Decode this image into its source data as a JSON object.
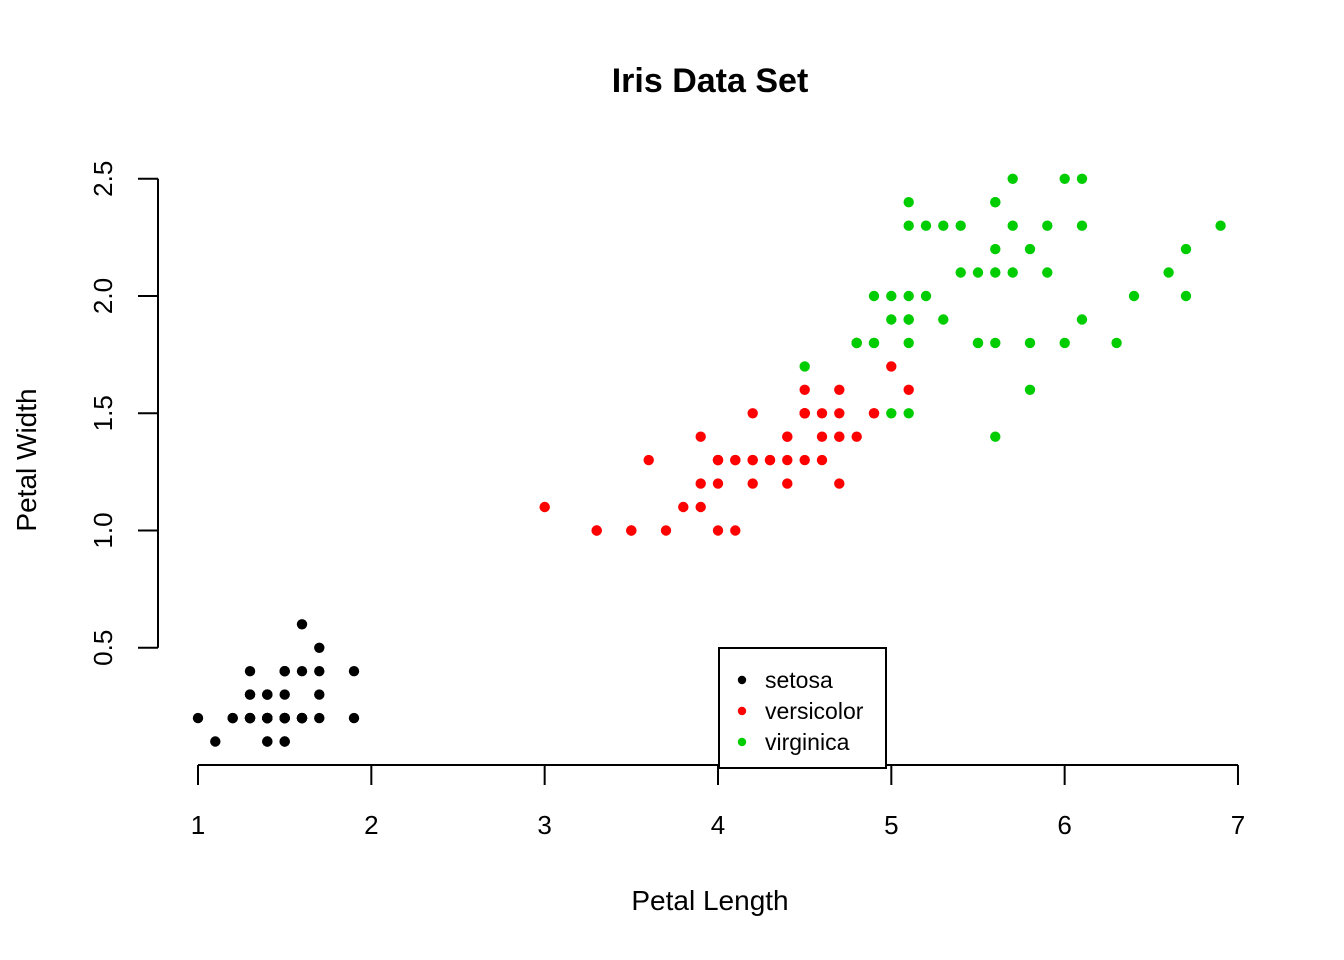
{
  "chart_data": {
    "type": "scatter",
    "title": "Iris Data Set",
    "xlabel": "Petal Length",
    "ylabel": "Petal Width",
    "xlim": [
      1,
      7
    ],
    "ylim": [
      0.1,
      2.5
    ],
    "x_ticks": [
      1,
      2,
      3,
      4,
      5,
      6,
      7
    ],
    "y_ticks": [
      0.5,
      1.0,
      1.5,
      2.0,
      2.5
    ],
    "x_tick_labels": [
      "1",
      "2",
      "3",
      "4",
      "5",
      "6",
      "7"
    ],
    "y_tick_labels": [
      "0.5",
      "1.0",
      "1.5",
      "2.0",
      "2.5"
    ],
    "grid": false,
    "legend_position": "bottom-center",
    "series": [
      {
        "name": "setosa",
        "color": "#000000",
        "points": [
          [
            1.4,
            0.2
          ],
          [
            1.4,
            0.2
          ],
          [
            1.3,
            0.2
          ],
          [
            1.5,
            0.2
          ],
          [
            1.4,
            0.2
          ],
          [
            1.7,
            0.4
          ],
          [
            1.4,
            0.3
          ],
          [
            1.5,
            0.2
          ],
          [
            1.4,
            0.2
          ],
          [
            1.5,
            0.1
          ],
          [
            1.5,
            0.2
          ],
          [
            1.6,
            0.2
          ],
          [
            1.4,
            0.1
          ],
          [
            1.1,
            0.1
          ],
          [
            1.2,
            0.2
          ],
          [
            1.5,
            0.4
          ],
          [
            1.3,
            0.4
          ],
          [
            1.4,
            0.3
          ],
          [
            1.7,
            0.3
          ],
          [
            1.5,
            0.3
          ],
          [
            1.7,
            0.2
          ],
          [
            1.5,
            0.4
          ],
          [
            1.0,
            0.2
          ],
          [
            1.7,
            0.5
          ],
          [
            1.9,
            0.2
          ],
          [
            1.6,
            0.2
          ],
          [
            1.6,
            0.4
          ],
          [
            1.5,
            0.2
          ],
          [
            1.4,
            0.2
          ],
          [
            1.6,
            0.2
          ],
          [
            1.6,
            0.2
          ],
          [
            1.5,
            0.4
          ],
          [
            1.5,
            0.1
          ],
          [
            1.4,
            0.2
          ],
          [
            1.5,
            0.2
          ],
          [
            1.2,
            0.2
          ],
          [
            1.3,
            0.2
          ],
          [
            1.4,
            0.1
          ],
          [
            1.3,
            0.2
          ],
          [
            1.5,
            0.2
          ],
          [
            1.3,
            0.3
          ],
          [
            1.3,
            0.3
          ],
          [
            1.3,
            0.2
          ],
          [
            1.6,
            0.6
          ],
          [
            1.9,
            0.4
          ],
          [
            1.4,
            0.3
          ],
          [
            1.6,
            0.2
          ],
          [
            1.4,
            0.2
          ],
          [
            1.5,
            0.2
          ],
          [
            1.4,
            0.2
          ]
        ]
      },
      {
        "name": "versicolor",
        "color": "#ff0000",
        "points": [
          [
            4.7,
            1.4
          ],
          [
            4.5,
            1.5
          ],
          [
            4.9,
            1.5
          ],
          [
            4.0,
            1.3
          ],
          [
            4.6,
            1.5
          ],
          [
            4.5,
            1.3
          ],
          [
            4.7,
            1.6
          ],
          [
            3.3,
            1.0
          ],
          [
            4.6,
            1.3
          ],
          [
            3.9,
            1.4
          ],
          [
            3.5,
            1.0
          ],
          [
            4.2,
            1.5
          ],
          [
            4.0,
            1.0
          ],
          [
            4.7,
            1.4
          ],
          [
            3.6,
            1.3
          ],
          [
            4.4,
            1.4
          ],
          [
            4.5,
            1.5
          ],
          [
            4.1,
            1.0
          ],
          [
            4.5,
            1.5
          ],
          [
            3.9,
            1.1
          ],
          [
            4.8,
            1.8
          ],
          [
            4.0,
            1.3
          ],
          [
            4.9,
            1.5
          ],
          [
            4.7,
            1.2
          ],
          [
            4.3,
            1.3
          ],
          [
            4.4,
            1.4
          ],
          [
            4.8,
            1.4
          ],
          [
            5.0,
            1.7
          ],
          [
            4.5,
            1.5
          ],
          [
            3.5,
            1.0
          ],
          [
            3.8,
            1.1
          ],
          [
            3.7,
            1.0
          ],
          [
            3.9,
            1.2
          ],
          [
            5.1,
            1.6
          ],
          [
            4.5,
            1.5
          ],
          [
            4.5,
            1.6
          ],
          [
            4.7,
            1.5
          ],
          [
            4.4,
            1.3
          ],
          [
            4.1,
            1.3
          ],
          [
            4.0,
            1.3
          ],
          [
            4.4,
            1.2
          ],
          [
            4.6,
            1.4
          ],
          [
            4.0,
            1.2
          ],
          [
            3.3,
            1.0
          ],
          [
            4.2,
            1.3
          ],
          [
            4.2,
            1.2
          ],
          [
            4.2,
            1.3
          ],
          [
            4.3,
            1.3
          ],
          [
            3.0,
            1.1
          ],
          [
            4.1,
            1.3
          ]
        ]
      },
      {
        "name": "virginica",
        "color": "#00cd00",
        "points": [
          [
            6.0,
            2.5
          ],
          [
            5.1,
            1.9
          ],
          [
            5.9,
            2.1
          ],
          [
            5.6,
            1.8
          ],
          [
            5.8,
            2.2
          ],
          [
            6.6,
            2.1
          ],
          [
            4.5,
            1.7
          ],
          [
            6.3,
            1.8
          ],
          [
            5.8,
            1.8
          ],
          [
            6.1,
            2.5
          ],
          [
            5.1,
            2.0
          ],
          [
            5.3,
            1.9
          ],
          [
            5.5,
            2.1
          ],
          [
            5.0,
            2.0
          ],
          [
            5.1,
            2.4
          ],
          [
            5.3,
            2.3
          ],
          [
            5.5,
            1.8
          ],
          [
            6.7,
            2.2
          ],
          [
            6.9,
            2.3
          ],
          [
            5.0,
            1.5
          ],
          [
            5.7,
            2.3
          ],
          [
            4.9,
            2.0
          ],
          [
            6.7,
            2.0
          ],
          [
            4.9,
            1.8
          ],
          [
            5.7,
            2.1
          ],
          [
            6.0,
            1.8
          ],
          [
            4.8,
            1.8
          ],
          [
            4.9,
            1.8
          ],
          [
            5.6,
            2.1
          ],
          [
            5.8,
            1.6
          ],
          [
            6.1,
            1.9
          ],
          [
            6.4,
            2.0
          ],
          [
            5.6,
            2.2
          ],
          [
            5.1,
            1.5
          ],
          [
            5.6,
            1.4
          ],
          [
            6.1,
            2.3
          ],
          [
            5.6,
            2.4
          ],
          [
            5.5,
            1.8
          ],
          [
            4.8,
            1.8
          ],
          [
            5.4,
            2.1
          ],
          [
            5.6,
            2.4
          ],
          [
            5.1,
            2.3
          ],
          [
            5.1,
            1.9
          ],
          [
            5.9,
            2.3
          ],
          [
            5.7,
            2.5
          ],
          [
            5.2,
            2.3
          ],
          [
            5.0,
            1.9
          ],
          [
            5.2,
            2.0
          ],
          [
            5.4,
            2.3
          ],
          [
            5.1,
            1.8
          ]
        ]
      }
    ]
  }
}
